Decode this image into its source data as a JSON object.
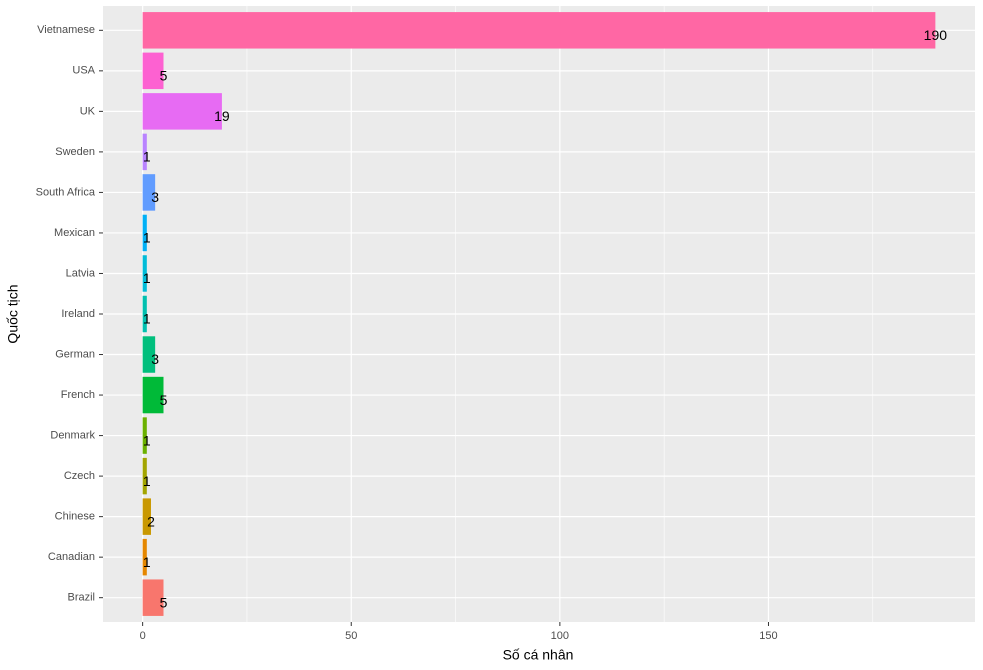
{
  "chart_data": {
    "type": "bar",
    "orientation": "horizontal",
    "x_label": "Số cá nhân",
    "y_label": "Quốc tịch",
    "categories": [
      "Brazil",
      "Canadian",
      "Chinese",
      "Czech",
      "Denmark",
      "French",
      "German",
      "Ireland",
      "Latvia",
      "Mexican",
      "South Africa",
      "Sweden",
      "UK",
      "USA",
      "Vietnamese"
    ],
    "values": [
      5,
      1,
      2,
      1,
      1,
      5,
      3,
      1,
      1,
      1,
      3,
      1,
      19,
      5,
      190
    ],
    "colors": [
      "#F8766D",
      "#E58700",
      "#C99800",
      "#A3A500",
      "#6BB100",
      "#00BA38",
      "#00BF7D",
      "#00C0AF",
      "#00BCD8",
      "#00B0F6",
      "#619CFF",
      "#B983FF",
      "#E76BF3",
      "#FD61D1",
      "#FF67A4"
    ],
    "xlim": [
      -9.5,
      199.5
    ],
    "xticks": [
      0,
      50,
      100,
      150
    ],
    "xminorticks": [
      25,
      75,
      125,
      175
    ],
    "grid": true
  }
}
